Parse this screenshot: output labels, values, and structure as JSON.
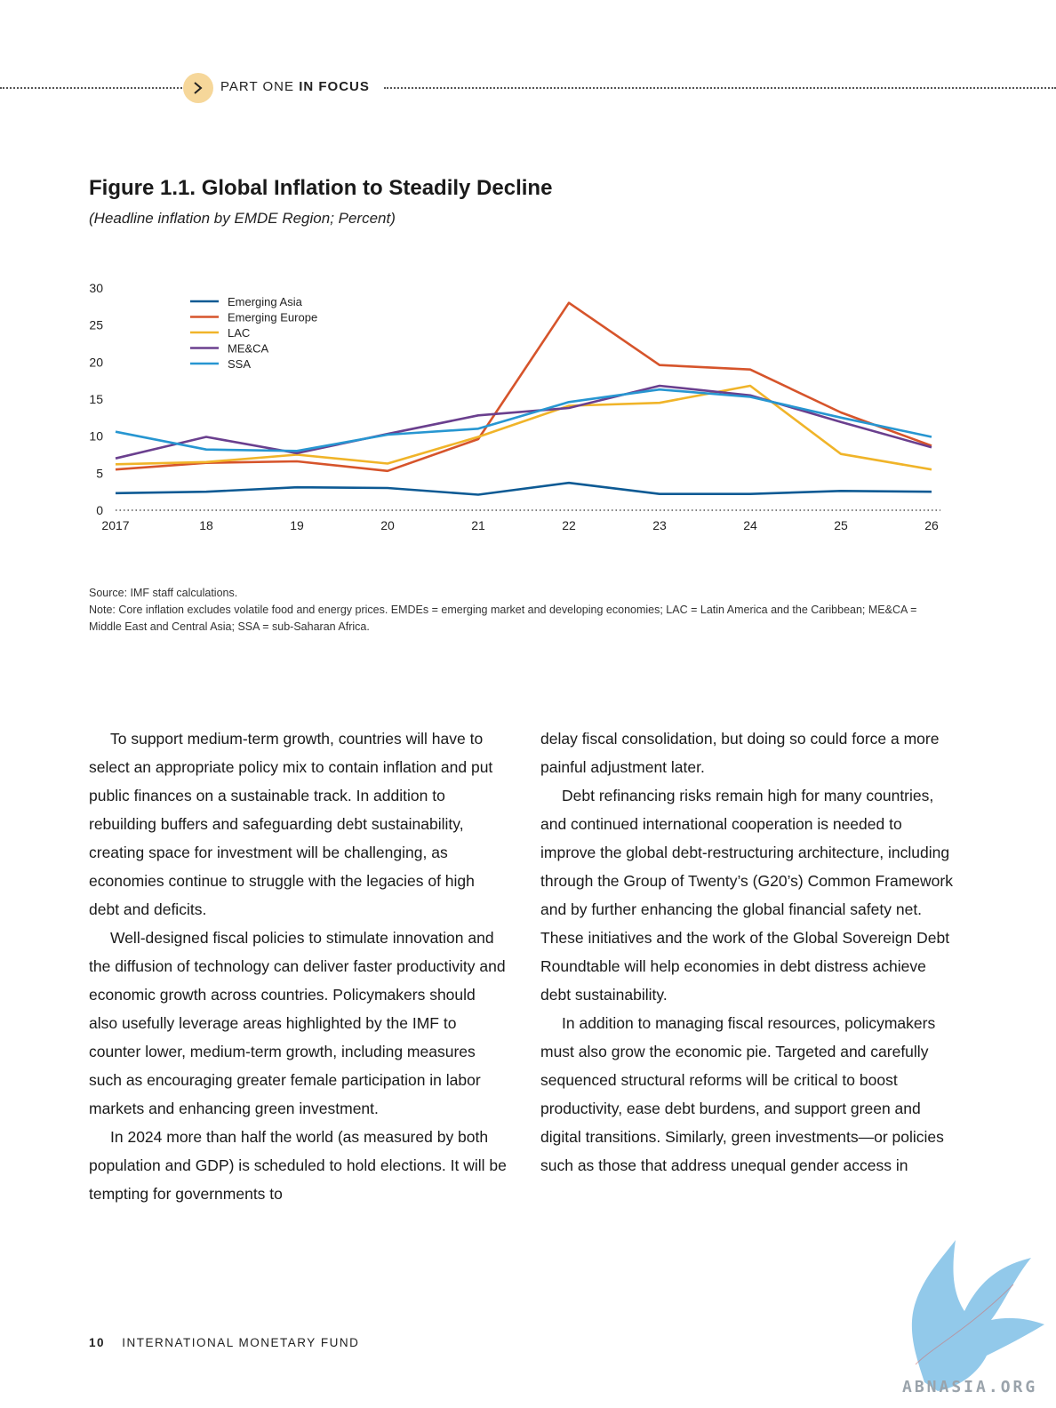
{
  "header": {
    "section_label": "PART ONE",
    "section_bold": "IN FOCUS"
  },
  "figure": {
    "title": "Figure 1.1. Global Inflation to Steadily Decline",
    "subtitle": "(Headline inflation by EMDE Region; Percent)",
    "source": "Source: IMF staff calculations.",
    "note": "Note: Core inflation excludes volatile food and energy prices. EMDEs = emerging market and developing economies; LAC = Latin America and the Caribbean; ME&CA = Middle East and Central Asia; SSA = sub-Saharan Africa."
  },
  "chart_data": {
    "type": "line",
    "title": "Figure 1.1. Global Inflation to Steadily Decline",
    "subtitle": "(Headline inflation by EMDE Region; Percent)",
    "x": [
      "2017",
      "18",
      "19",
      "20",
      "21",
      "22",
      "23",
      "24",
      "25",
      "26"
    ],
    "ylim": [
      0,
      30
    ],
    "yticks": [
      0,
      5,
      10,
      15,
      20,
      25,
      30
    ],
    "grid": false,
    "legend_position": "top-left",
    "series": [
      {
        "name": "Emerging Asia",
        "color": "#0d5a94",
        "values": [
          2.3,
          2.5,
          3.1,
          3.0,
          2.1,
          3.7,
          2.2,
          2.2,
          2.6,
          2.5
        ]
      },
      {
        "name": "Emerging Europe",
        "color": "#d6542b",
        "values": [
          5.5,
          6.4,
          6.6,
          5.3,
          9.6,
          28.0,
          19.6,
          19.0,
          13.2,
          8.7
        ]
      },
      {
        "name": "LAC",
        "color": "#f0b429",
        "values": [
          6.2,
          6.5,
          7.5,
          6.3,
          9.9,
          14.1,
          14.5,
          16.8,
          7.6,
          5.5
        ]
      },
      {
        "name": "ME&CA",
        "color": "#6a3f8e",
        "values": [
          7.0,
          9.9,
          7.7,
          10.3,
          12.8,
          13.8,
          16.8,
          15.5,
          11.9,
          8.5
        ]
      },
      {
        "name": "SSA",
        "color": "#2796d1",
        "values": [
          10.6,
          8.2,
          8.0,
          10.2,
          11.0,
          14.6,
          16.3,
          15.3,
          12.5,
          9.9
        ]
      }
    ]
  },
  "body": {
    "left": [
      "To support medium-term growth, countries will have to select an appropriate policy mix to contain inflation and put public finances on a sustainable track. In addition to rebuilding buffers and safeguarding debt sustainability, creating space for investment will be challenging, as economies continue to struggle with the legacies of high debt and deficits.",
      "Well-designed fiscal policies to stimulate innovation and the diffusion of technology can deliver faster productivity and economic growth across countries. Policymakers should also usefully leverage areas highlighted by the IMF to counter lower, medium-term growth, including measures such as encouraging greater female participation in labor markets and enhancing green investment.",
      "In 2024 more than half the world (as measured by both population and GDP) is scheduled to hold elections. It will be tempting for governments to"
    ],
    "right": [
      "delay fiscal consolidation, but doing so could force a more painful adjustment later.",
      "Debt refinancing risks remain high for many countries, and continued international cooperation is needed to improve the global debt-restructuring architecture, including through the Group of Twenty’s (G20’s) Common Framework and by further enhancing the global financial safety net. These initiatives and the work of the Global Sovereign Debt Roundtable will help economies in debt distress achieve debt sustainability.",
      "In addition to managing fiscal resources, policymakers must also grow the economic pie. Targeted and carefully sequenced structural reforms will be critical to boost productivity, ease debt burdens, and support green and digital transitions. Similarly, green investments—or policies such as those that address unequal gender access in"
    ]
  },
  "footer": {
    "page_number": "10",
    "publisher": "INTERNATIONAL MONETARY FUND"
  },
  "watermark": {
    "text": "ABNASIA.ORG",
    "color": "#7fbfe6"
  }
}
